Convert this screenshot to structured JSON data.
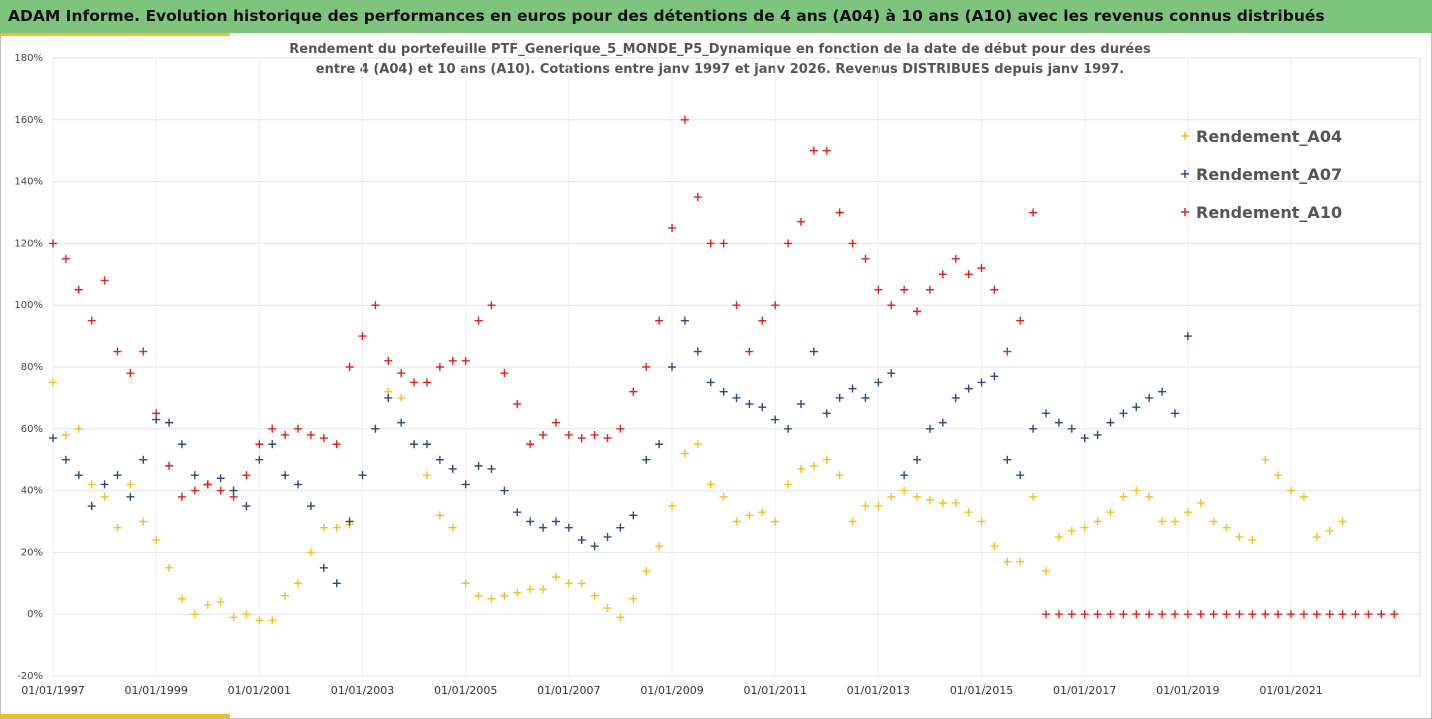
{
  "chart_data": {
    "type": "scatter",
    "title": "ADAM Informe. Evolution historique des performances en euros pour des détentions de 4 ans (A04) à 10 ans (A10) avec les revenus connus distribués",
    "subtitle": [
      "Rendement du portefeuille PTF_Generique_5_MONDE_P5_Dynamique  en fonction de la date de début pour des durées",
      "entre 4 (A04) et 10 ans (A10). Cotations entre janv 1997 et janv 2026. Revenus DISTRIBUES depuis janv 1997."
    ],
    "x": [
      "01/01/1997",
      "01/04/1997",
      "01/07/1997",
      "01/10/1997",
      "01/01/1998",
      "01/04/1998",
      "01/07/1998",
      "01/10/1998",
      "01/01/1999",
      "01/04/1999",
      "01/07/1999",
      "01/10/1999",
      "01/01/2000",
      "01/04/2000",
      "01/07/2000",
      "01/10/2000",
      "01/01/2001",
      "01/04/2001",
      "01/07/2001",
      "01/10/2001",
      "01/01/2002",
      "01/04/2002",
      "01/07/2002",
      "01/10/2002",
      "01/01/2003",
      "01/04/2003",
      "01/07/2003",
      "01/10/2003",
      "01/01/2004",
      "01/04/2004",
      "01/07/2004",
      "01/10/2004",
      "01/01/2005",
      "01/04/2005",
      "01/07/2005",
      "01/10/2005",
      "01/01/2006",
      "01/04/2006",
      "01/07/2006",
      "01/10/2006",
      "01/01/2007",
      "01/04/2007",
      "01/07/2007",
      "01/10/2007",
      "01/01/2008",
      "01/04/2008",
      "01/07/2008",
      "01/10/2008",
      "01/01/2009",
      "01/04/2009",
      "01/07/2009",
      "01/10/2009",
      "01/01/2010",
      "01/04/2010",
      "01/07/2010",
      "01/10/2010",
      "01/01/2011",
      "01/04/2011",
      "01/07/2011",
      "01/10/2011",
      "01/01/2012",
      "01/04/2012",
      "01/07/2012",
      "01/10/2012",
      "01/01/2013",
      "01/04/2013",
      "01/07/2013",
      "01/10/2013",
      "01/01/2014",
      "01/04/2014",
      "01/07/2014",
      "01/10/2014",
      "01/01/2015",
      "01/04/2015",
      "01/07/2015",
      "01/10/2015",
      "01/01/2016",
      "01/04/2016",
      "01/07/2016",
      "01/10/2016",
      "01/01/2017",
      "01/04/2017",
      "01/07/2017",
      "01/10/2017",
      "01/01/2018",
      "01/04/2018",
      "01/07/2018",
      "01/10/2018",
      "01/01/2019",
      "01/04/2019",
      "01/07/2019",
      "01/10/2019",
      "01/01/2020",
      "01/04/2020",
      "01/07/2020",
      "01/10/2020",
      "01/01/2021",
      "01/04/2021",
      "01/07/2021",
      "01/10/2021",
      "01/01/2022",
      "01/04/2022",
      "01/07/2022",
      "01/10/2022",
      "01/01/2023"
    ],
    "series": [
      {
        "name": "Rendement_A04",
        "color": "#f5be1e",
        "values": [
          75,
          58,
          60,
          42,
          38,
          28,
          42,
          30,
          24,
          15,
          5,
          0,
          3,
          4,
          -1,
          0,
          -2,
          -2,
          6,
          10,
          20,
          28,
          28,
          29,
          45,
          60,
          72,
          70,
          55,
          45,
          32,
          28,
          10,
          6,
          5,
          6,
          7,
          8,
          8,
          12,
          10,
          10,
          6,
          2,
          -1,
          5,
          14,
          22,
          35,
          52,
          55,
          42,
          38,
          30,
          32,
          33,
          30,
          42,
          47,
          48,
          50,
          45,
          30,
          35,
          35,
          38,
          40,
          38,
          37,
          36,
          36,
          33,
          30,
          22,
          17,
          17,
          38,
          14,
          25,
          27,
          28,
          30,
          33,
          38,
          40,
          38,
          30,
          30,
          33,
          36,
          30,
          28,
          25,
          24,
          50,
          45,
          40,
          38,
          25,
          27,
          30,
          null,
          null,
          null,
          null
        ]
      },
      {
        "name": "Rendement_A07",
        "color": "#2e4a7a",
        "values": [
          57,
          50,
          45,
          35,
          42,
          45,
          38,
          50,
          63,
          62,
          55,
          45,
          42,
          44,
          40,
          35,
          50,
          55,
          45,
          42,
          35,
          15,
          10,
          30,
          45,
          60,
          70,
          62,
          55,
          55,
          50,
          47,
          42,
          48,
          47,
          40,
          33,
          30,
          28,
          30,
          28,
          24,
          22,
          25,
          28,
          32,
          50,
          55,
          80,
          95,
          85,
          75,
          72,
          70,
          68,
          67,
          63,
          60,
          68,
          85,
          65,
          70,
          73,
          70,
          75,
          78,
          45,
          50,
          60,
          62,
          70,
          73,
          75,
          77,
          50,
          45,
          60,
          65,
          62,
          60,
          57,
          58,
          62,
          65,
          67,
          70,
          72,
          65,
          90,
          null,
          null,
          null,
          null,
          null,
          null,
          null,
          null,
          null,
          null,
          null,
          null,
          null,
          null,
          null,
          null
        ]
      },
      {
        "name": "Rendement_A10",
        "color": "#e0201e",
        "values": [
          120,
          115,
          105,
          95,
          108,
          85,
          78,
          85,
          65,
          48,
          38,
          40,
          42,
          40,
          38,
          45,
          55,
          60,
          58,
          60,
          58,
          57,
          55,
          80,
          90,
          100,
          82,
          78,
          75,
          75,
          80,
          82,
          82,
          95,
          100,
          78,
          68,
          55,
          58,
          62,
          58,
          57,
          58,
          57,
          60,
          72,
          80,
          95,
          125,
          160,
          135,
          120,
          120,
          100,
          85,
          95,
          100,
          120,
          127,
          150,
          150,
          130,
          120,
          115,
          105,
          100,
          105,
          98,
          105,
          110,
          115,
          110,
          112,
          105,
          85,
          95,
          130,
          0,
          0,
          0,
          0,
          0,
          0,
          0,
          0,
          0,
          0,
          0,
          0,
          0,
          0,
          0,
          0,
          0,
          0,
          0,
          0,
          0,
          0,
          0,
          0,
          0,
          0,
          0,
          0
        ]
      }
    ],
    "xlim": [
      "01/01/1997",
      "01/07/2023"
    ],
    "xticks": [
      "01/01/1997",
      "01/01/1999",
      "01/01/2001",
      "01/01/2003",
      "01/01/2005",
      "01/01/2007",
      "01/01/2009",
      "01/01/2011",
      "01/01/2013",
      "01/01/2015",
      "01/01/2017",
      "01/01/2019",
      "01/01/2021"
    ],
    "ylim": [
      -20,
      180
    ],
    "yticks": [
      {
        "value": -20,
        "label": "-20%"
      },
      {
        "value": 0,
        "label": "0%"
      },
      {
        "value": 20,
        "label": "20%"
      },
      {
        "value": 40,
        "label": "40%"
      },
      {
        "value": 60,
        "label": "60%"
      },
      {
        "value": 80,
        "label": "80%"
      },
      {
        "value": 100,
        "label": "100%"
      },
      {
        "value": 120,
        "label": "120%"
      },
      {
        "value": 140,
        "label": "140%"
      },
      {
        "value": 160,
        "label": "160%"
      },
      {
        "value": 180,
        "label": "180%"
      }
    ],
    "grid": true,
    "legend": "right"
  }
}
